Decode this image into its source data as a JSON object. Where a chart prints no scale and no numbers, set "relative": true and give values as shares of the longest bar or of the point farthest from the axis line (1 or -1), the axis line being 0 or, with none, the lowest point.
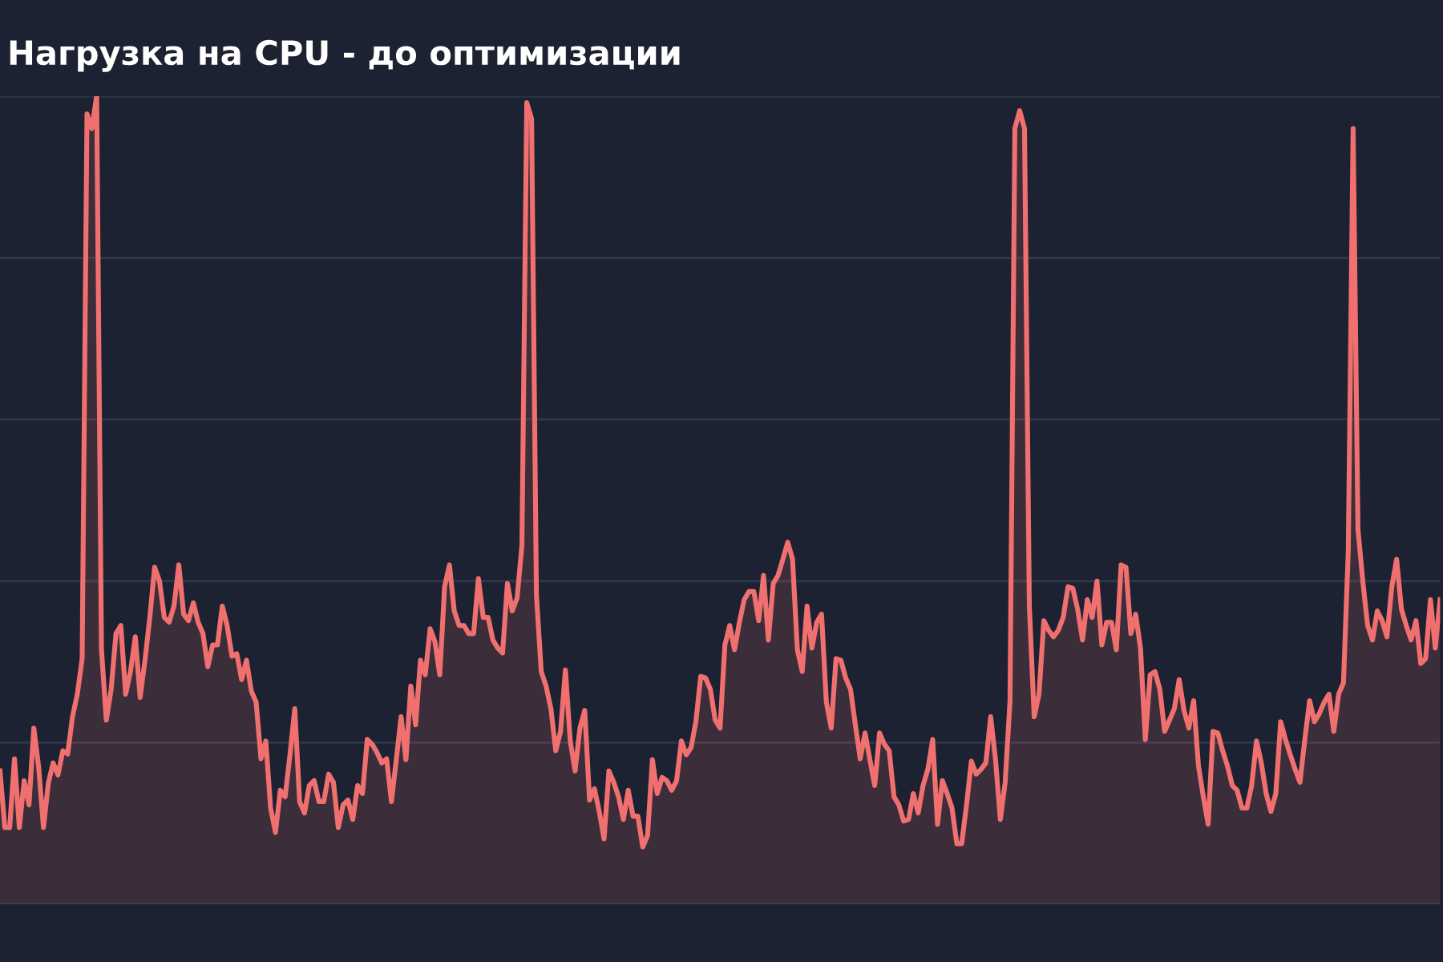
{
  "chart_data": {
    "type": "area",
    "title": "Нагрузка на CPU - до оптимизации",
    "relative": true,
    "grid": "y",
    "color": "#f07070",
    "categories": [
      null,
      null,
      null,
      null,
      null,
      null,
      null,
      null,
      null,
      null,
      null,
      null,
      null,
      null,
      null,
      null,
      null,
      null,
      null,
      null,
      null,
      null,
      null,
      null,
      null,
      null,
      null,
      null,
      null,
      null,
      null,
      null,
      null,
      null,
      null,
      null,
      null,
      null,
      null,
      null,
      null,
      null,
      null,
      null,
      null,
      null,
      null,
      null,
      null,
      null,
      null,
      null,
      null,
      null,
      null,
      null,
      null,
      null,
      null,
      null,
      null,
      null,
      null,
      null,
      null,
      null,
      null,
      null,
      null,
      null,
      null,
      null,
      null,
      null,
      null,
      null,
      null,
      null,
      null,
      null,
      null,
      null,
      null,
      null,
      null,
      null,
      null,
      null,
      null,
      null,
      null,
      null,
      null,
      null,
      null,
      null,
      null,
      null,
      null,
      null,
      null,
      null,
      null,
      null,
      null,
      null,
      null,
      null,
      null,
      null,
      null,
      null,
      null,
      null,
      null,
      null,
      null,
      null,
      null,
      null,
      null,
      null,
      null,
      null,
      null,
      null,
      null,
      null,
      null,
      null,
      null,
      null,
      null,
      null,
      null,
      null,
      null,
      null,
      null,
      null,
      null,
      null,
      null,
      null,
      null,
      null,
      null,
      null,
      null,
      null,
      null,
      null,
      null,
      null,
      null,
      null,
      null,
      null,
      null,
      null,
      null,
      null,
      null,
      null,
      null,
      null,
      null,
      null,
      null,
      null,
      null,
      null,
      null,
      null,
      null,
      null,
      null,
      null,
      null,
      null,
      null,
      null,
      null,
      null,
      null,
      null,
      null,
      null,
      null,
      null,
      null,
      null,
      null,
      null,
      null,
      null,
      null,
      null,
      null,
      null,
      null,
      null,
      null,
      null,
      null,
      null,
      null,
      null,
      null,
      null,
      null,
      null,
      null,
      null,
      null,
      null,
      null,
      null,
      null,
      null,
      null,
      null,
      null,
      null,
      null,
      null,
      null,
      null,
      null,
      null,
      null,
      null,
      null,
      null,
      null,
      null,
      null,
      null,
      null,
      null,
      null,
      null,
      null,
      null,
      null,
      null,
      null,
      null,
      null,
      null,
      null,
      null,
      null,
      null,
      null,
      null,
      null,
      null,
      null,
      null,
      null,
      null,
      null,
      null,
      null,
      null,
      null,
      null,
      null,
      null,
      null,
      null,
      null,
      null,
      null,
      null,
      null,
      null,
      null,
      null,
      null,
      null,
      null,
      null,
      null,
      null,
      null,
      null,
      null,
      null,
      null,
      null,
      null,
      null,
      null,
      null,
      null,
      null,
      null
    ],
    "values": [
      0.165,
      0.095,
      0.095,
      0.18,
      0.095,
      0.153,
      0.123,
      0.218,
      0.17,
      0.095,
      0.15,
      0.175,
      0.16,
      0.19,
      0.186,
      0.232,
      0.26,
      0.304,
      0.978,
      0.96,
      1,
      0.315,
      0.228,
      0.266,
      0.335,
      0.345,
      0.26,
      0.288,
      0.331,
      0.256,
      0.302,
      0.355,
      0.417,
      0.4,
      0.355,
      0.349,
      0.369,
      0.42,
      0.359,
      0.351,
      0.373,
      0.349,
      0.335,
      0.294,
      0.321,
      0.321,
      0.369,
      0.345,
      0.307,
      0.31,
      0.278,
      0.302,
      0.264,
      0.25,
      0.18,
      0.202,
      0.119,
      0.089,
      0.141,
      0.133,
      0.185,
      0.242,
      0.127,
      0.113,
      0.147,
      0.153,
      0.127,
      0.127,
      0.161,
      0.151,
      0.095,
      0.123,
      0.129,
      0.105,
      0.147,
      0.137,
      0.204,
      0.198,
      0.188,
      0.175,
      0.18,
      0.127,
      0.179,
      0.232,
      0.179,
      0.27,
      0.222,
      0.302,
      0.284,
      0.341,
      0.325,
      0.284,
      0.393,
      0.42,
      0.363,
      0.345,
      0.345,
      0.335,
      0.335,
      0.403,
      0.355,
      0.355,
      0.327,
      0.317,
      0.311,
      0.397,
      0.363,
      0.379,
      0.444,
      0.992,
      0.972,
      0.383,
      0.288,
      0.27,
      0.242,
      0.19,
      0.214,
      0.29,
      0.202,
      0.165,
      0.218,
      0.24,
      0.129,
      0.143,
      0.115,
      0.081,
      0.165,
      0.151,
      0.133,
      0.105,
      0.141,
      0.109,
      0.109,
      0.071,
      0.085,
      0.179,
      0.137,
      0.157,
      0.153,
      0.141,
      0.153,
      0.202,
      0.185,
      0.194,
      0.226,
      0.282,
      0.28,
      0.266,
      0.228,
      0.218,
      0.321,
      0.345,
      0.315,
      0.349,
      0.377,
      0.387,
      0.387,
      0.351,
      0.407,
      0.327,
      0.397,
      0.407,
      0.427,
      0.448,
      0.427,
      0.315,
      0.288,
      0.369,
      0.317,
      0.349,
      0.359,
      0.25,
      0.218,
      0.304,
      0.302,
      0.28,
      0.266,
      0.222,
      0.18,
      0.212,
      0.179,
      0.147,
      0.212,
      0.198,
      0.19,
      0.133,
      0.123,
      0.103,
      0.105,
      0.137,
      0.113,
      0.147,
      0.167,
      0.204,
      0.099,
      0.153,
      0.137,
      0.119,
      0.075,
      0.075,
      0.123,
      0.177,
      0.161,
      0.167,
      0.175,
      0.232,
      0.179,
      0.105,
      0.151,
      0.252,
      0.96,
      0.982,
      0.96,
      0.369,
      0.232,
      0.26,
      0.351,
      0.339,
      0.331,
      0.339,
      0.355,
      0.393,
      0.391,
      0.365,
      0.327,
      0.377,
      0.355,
      0.4,
      0.321,
      0.349,
      0.349,
      0.315,
      0.42,
      0.417,
      0.335,
      0.359,
      0.317,
      0.204,
      0.284,
      0.288,
      0.266,
      0.214,
      0.228,
      0.242,
      0.278,
      0.24,
      0.218,
      0.252,
      0.171,
      0.133,
      0.099,
      0.214,
      0.212,
      0.19,
      0.171,
      0.147,
      0.141,
      0.119,
      0.119,
      0.147,
      0.202,
      0.175,
      0.137,
      0.115,
      0.137,
      0.226,
      0.204,
      0.185,
      0.167,
      0.151,
      0.204,
      0.252,
      0.226,
      0.236,
      0.25,
      0.26,
      0.214,
      0.26,
      0.274,
      0.438,
      0.96,
      0.464,
      0.4,
      0.345,
      0.327,
      0.363,
      0.351,
      0.331,
      0.393,
      0.427,
      0.365,
      0.345,
      0.327,
      0.351,
      0.298,
      0.304,
      0.377,
      0.317,
      0.377
    ]
  }
}
